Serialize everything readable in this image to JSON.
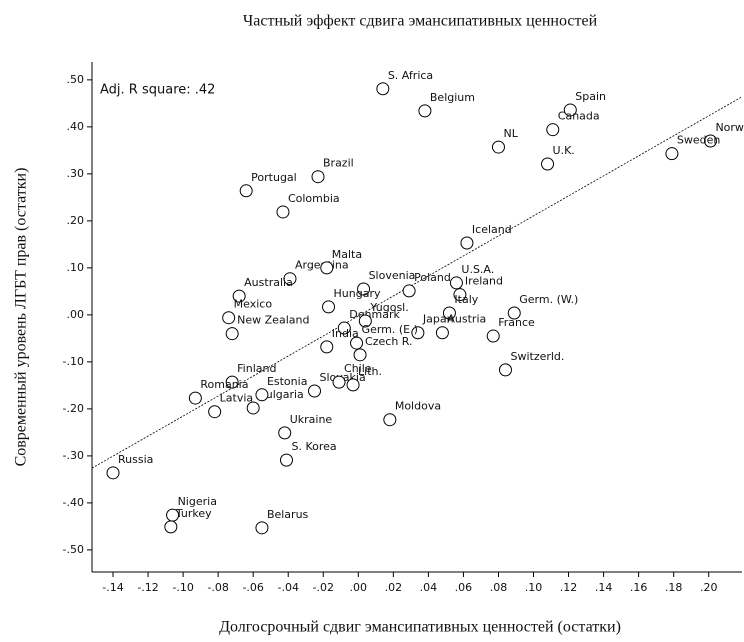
{
  "chart_data": {
    "type": "scatter",
    "title": "Частный эффект сдвига эмансипативных ценностей",
    "x_label": "Долгосрочный сдвиг эмансипативных ценностей (остатки)",
    "y_label": "Современный уровень ЛГБТ прав (остатки)",
    "annotation": "Adj. R square: .42",
    "color": "#000000",
    "labels": [
      "S. Africa",
      "Belgium",
      "Spain",
      "Canada",
      "NL",
      "U.K.",
      "Norway",
      "Sweden",
      "Brazil",
      "Portugal",
      "Colombia",
      "Iceland",
      "Argentina",
      "Malta",
      "Australia",
      "Slovenia",
      "Poland",
      "U.S.A.",
      "Ireland",
      "Mexico",
      "Hungary",
      "Germ. (W.)",
      "Italy",
      "Denmark",
      "Yugosl.",
      "India",
      "Japan",
      "Germ. (E.)",
      "Czech R.",
      "Austria",
      "France",
      "Switzerld.",
      "New Zealand",
      "Finland",
      "Romania",
      "Latvia",
      "Bulgaria",
      "Estonia",
      "Slovakia",
      "Moldova",
      "Lith.",
      "Chile",
      "Ukraine",
      "S. Korea",
      "Russia",
      "Nigeria",
      "Turkey",
      "Belarus"
    ],
    "x": [
      0.014,
      0.038,
      0.121,
      0.111,
      0.08,
      0.108,
      0.201,
      0.179,
      -0.023,
      -0.064,
      -0.043,
      0.062,
      -0.039,
      -0.018,
      -0.068,
      0.003,
      0.029,
      0.056,
      0.058,
      -0.074,
      -0.017,
      0.089,
      0.052,
      -0.008,
      0.004,
      -0.018,
      0.034,
      -0.001,
      0.001,
      0.048,
      0.077,
      0.084,
      -0.072,
      -0.072,
      -0.093,
      -0.082,
      -0.06,
      -0.055,
      -0.025,
      0.018,
      -0.003,
      -0.011,
      -0.042,
      -0.041,
      -0.14,
      -0.106,
      -0.107,
      -0.055
    ],
    "values": [
      0.481,
      0.434,
      0.436,
      0.394,
      0.357,
      0.321,
      0.37,
      0.343,
      0.294,
      0.264,
      0.219,
      0.153,
      0.077,
      0.1,
      0.04,
      0.055,
      0.051,
      0.068,
      0.043,
      -0.006,
      0.017,
      0.004,
      0.004,
      -0.028,
      -0.013,
      -0.068,
      -0.038,
      -0.06,
      -0.085,
      -0.038,
      -0.045,
      -0.117,
      -0.04,
      -0.143,
      -0.177,
      -0.206,
      -0.198,
      -0.17,
      -0.162,
      -0.223,
      -0.149,
      -0.143,
      -0.251,
      -0.309,
      -0.336,
      -0.426,
      -0.451,
      -0.453
    ],
    "fit_line": {
      "x": [
        -0.152,
        0.219
      ],
      "y": [
        -0.326,
        0.464
      ]
    },
    "xlim": [
      -0.152,
      0.219
    ],
    "ylim": [
      -0.547,
      0.538
    ],
    "xticks": [
      {
        "value": -0.14,
        "label": "-.14"
      },
      {
        "value": -0.12,
        "label": "-.12"
      },
      {
        "value": -0.1,
        "label": "-.10"
      },
      {
        "value": -0.08,
        "label": "-.08"
      },
      {
        "value": -0.06,
        "label": "-.06"
      },
      {
        "value": -0.04,
        "label": "-.04"
      },
      {
        "value": -0.02,
        "label": "-.02"
      },
      {
        "value": 0,
        "label": ".00"
      },
      {
        "value": 0.02,
        "label": ".02"
      },
      {
        "value": 0.04,
        "label": ".04"
      },
      {
        "value": 0.06,
        "label": ".06"
      },
      {
        "value": 0.08,
        "label": ".08"
      },
      {
        "value": 0.1,
        "label": ".10"
      },
      {
        "value": 0.12,
        "label": ".12"
      },
      {
        "value": 0.14,
        "label": ".14"
      },
      {
        "value": 0.16,
        "label": ".16"
      },
      {
        "value": 0.18,
        "label": ".18"
      },
      {
        "value": 0.2,
        "label": ".20"
      }
    ],
    "yticks": [
      {
        "value": 0.5,
        "label": ".50"
      },
      {
        "value": 0.4,
        "label": ".40"
      },
      {
        "value": 0.3,
        "label": ".30"
      },
      {
        "value": 0.2,
        "label": ".20"
      },
      {
        "value": 0.1,
        "label": ".10"
      },
      {
        "value": 0,
        "label": ".00"
      },
      {
        "value": -0.1,
        "label": "-.10"
      },
      {
        "value": -0.2,
        "label": "-.20"
      },
      {
        "value": -0.3,
        "label": "-.30"
      },
      {
        "value": -0.4,
        "label": "-.40"
      },
      {
        "value": -0.5,
        "label": "-.50"
      }
    ]
  }
}
